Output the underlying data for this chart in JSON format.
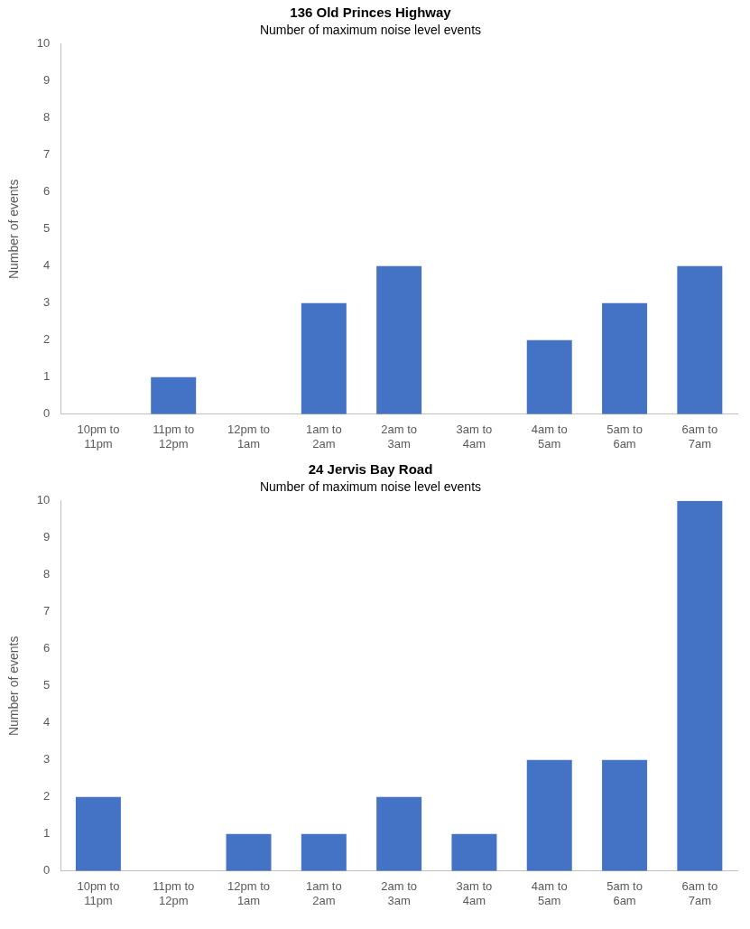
{
  "chart_data": [
    {
      "type": "bar",
      "title": "136 Old Princes Highway",
      "subtitle": "Number of maximum noise level events",
      "ylabel": "Number of events",
      "categories": [
        "10pm to 11pm",
        "11pm to 12pm",
        "12pm to 1am",
        "1am to 2am",
        "2am to 3am",
        "3am to 4am",
        "4am to 5am",
        "5am to 6am",
        "6am to 7am"
      ],
      "values": [
        0,
        1,
        0,
        3,
        4,
        0,
        2,
        3,
        4
      ],
      "color": "#4472c4",
      "ylim": [
        0,
        10
      ],
      "yticks": [
        0,
        1,
        2,
        3,
        4,
        5,
        6,
        7,
        8,
        9,
        10
      ],
      "grid": false,
      "legend": false
    },
    {
      "type": "bar",
      "title": "24 Jervis Bay Road",
      "subtitle": "Number of maximum noise level events",
      "ylabel": "Number of events",
      "categories": [
        "10pm to 11pm",
        "11pm to 12pm",
        "12pm to 1am",
        "1am to 2am",
        "2am to 3am",
        "3am to 4am",
        "4am to 5am",
        "5am to 6am",
        "6am to 7am"
      ],
      "values": [
        2,
        0,
        1,
        1,
        2,
        1,
        3,
        3,
        10
      ],
      "color": "#4472c4",
      "ylim": [
        0,
        10
      ],
      "yticks": [
        0,
        1,
        2,
        3,
        4,
        5,
        6,
        7,
        8,
        9,
        10
      ],
      "grid": false,
      "legend": false
    }
  ]
}
